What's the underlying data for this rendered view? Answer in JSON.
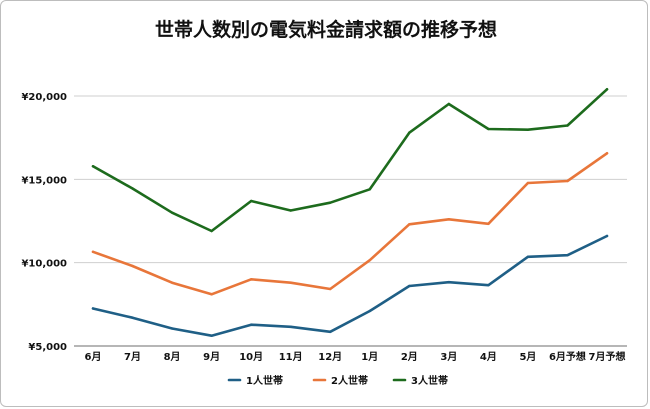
{
  "chart_data": {
    "type": "line",
    "title": "世帯人数別の電気料金請求額の推移予想",
    "categories": [
      "6月",
      "7月",
      "8月",
      "9月",
      "10月",
      "11月",
      "12月",
      "1月",
      "2月",
      "3月",
      "4月",
      "5月",
      "6月予想",
      "7月予想"
    ],
    "ylim": [
      5000,
      20000
    ],
    "yticks": [
      5000,
      10000,
      15000,
      20000
    ],
    "ytick_labels": [
      "¥5,000",
      "¥10,000",
      "¥15,000",
      "¥20,000"
    ],
    "grid": true,
    "legend_position": "bottom",
    "series": [
      {
        "name": "1人世帯",
        "color": "#1f5f86",
        "values": [
          7250,
          6700,
          6050,
          5620,
          6280,
          6150,
          5850,
          7100,
          8600,
          8830,
          8650,
          10350,
          10450,
          11600
        ]
      },
      {
        "name": "2人世帯",
        "color": "#e8763a",
        "values": [
          10650,
          9800,
          8800,
          8100,
          9000,
          8800,
          8420,
          10150,
          12300,
          12600,
          12330,
          14780,
          14900,
          16560
        ]
      },
      {
        "name": "3人世帯",
        "color": "#1d6b1d",
        "values": [
          15780,
          14450,
          13000,
          11900,
          13700,
          13130,
          13600,
          14400,
          17800,
          19520,
          18020,
          17980,
          18230,
          20400
        ]
      }
    ]
  }
}
